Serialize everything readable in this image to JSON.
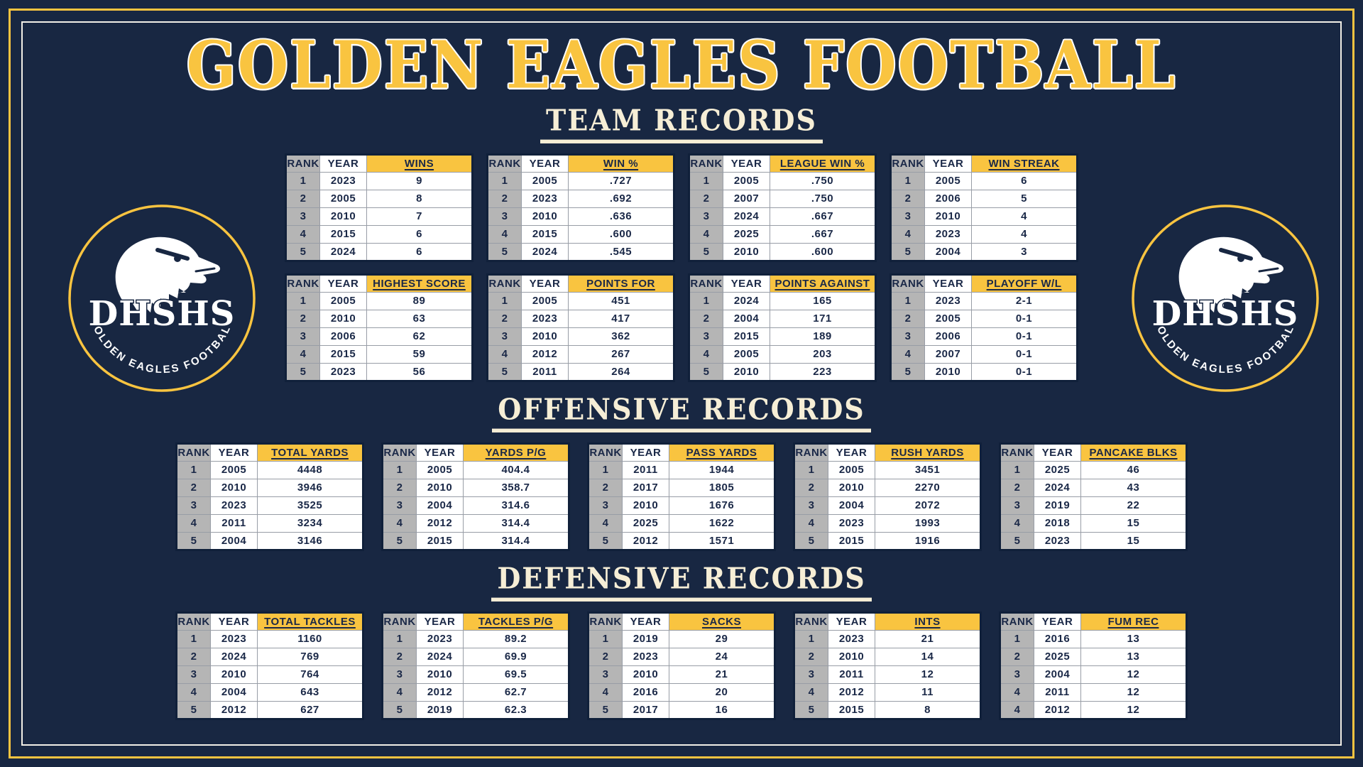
{
  "title": "GOLDEN EAGLES FOOTBALL",
  "labels": {
    "rank": "RANK",
    "year": "YEAR"
  },
  "logo": {
    "monogram": "DHSHS",
    "arc_text": "GOLDEN EAGLES FOOTBALL"
  },
  "colors": {
    "background": "#182742",
    "gold": "#f9c440",
    "cream": "#f6eed6",
    "rank_gray": "#b5b5b5",
    "table_text": "#1a2847",
    "white": "#ffffff"
  },
  "sections": [
    {
      "heading": "TEAM RECORDS",
      "layout": "team",
      "tables": [
        {
          "stat": "WINS",
          "rows": [
            [
              "1",
              "2023",
              "9"
            ],
            [
              "2",
              "2005",
              "8"
            ],
            [
              "3",
              "2010",
              "7"
            ],
            [
              "4",
              "2015",
              "6"
            ],
            [
              "5",
              "2024",
              "6"
            ]
          ]
        },
        {
          "stat": "WIN %",
          "rows": [
            [
              "1",
              "2005",
              ".727"
            ],
            [
              "2",
              "2023",
              ".692"
            ],
            [
              "3",
              "2010",
              ".636"
            ],
            [
              "4",
              "2015",
              ".600"
            ],
            [
              "5",
              "2024",
              ".545"
            ]
          ]
        },
        {
          "stat": "LEAGUE WIN %",
          "rows": [
            [
              "1",
              "2005",
              ".750"
            ],
            [
              "2",
              "2007",
              ".750"
            ],
            [
              "3",
              "2024",
              ".667"
            ],
            [
              "4",
              "2025",
              ".667"
            ],
            [
              "5",
              "2010",
              ".600"
            ]
          ]
        },
        {
          "stat": "WIN STREAK",
          "rows": [
            [
              "1",
              "2005",
              "6"
            ],
            [
              "2",
              "2006",
              "5"
            ],
            [
              "3",
              "2010",
              "4"
            ],
            [
              "4",
              "2023",
              "4"
            ],
            [
              "5",
              "2004",
              "3"
            ]
          ]
        },
        {
          "stat": "HIGHEST SCORE",
          "rows": [
            [
              "1",
              "2005",
              "89"
            ],
            [
              "2",
              "2010",
              "63"
            ],
            [
              "3",
              "2006",
              "62"
            ],
            [
              "4",
              "2015",
              "59"
            ],
            [
              "5",
              "2023",
              "56"
            ]
          ]
        },
        {
          "stat": "POINTS FOR",
          "rows": [
            [
              "1",
              "2005",
              "451"
            ],
            [
              "2",
              "2023",
              "417"
            ],
            [
              "3",
              "2010",
              "362"
            ],
            [
              "4",
              "2012",
              "267"
            ],
            [
              "5",
              "2011",
              "264"
            ]
          ]
        },
        {
          "stat": "POINTS AGAINST",
          "rows": [
            [
              "1",
              "2024",
              "165"
            ],
            [
              "2",
              "2004",
              "171"
            ],
            [
              "3",
              "2015",
              "189"
            ],
            [
              "4",
              "2005",
              "203"
            ],
            [
              "5",
              "2010",
              "223"
            ]
          ]
        },
        {
          "stat": "PLAYOFF W/L",
          "rows": [
            [
              "1",
              "2023",
              "2-1"
            ],
            [
              "2",
              "2005",
              "0-1"
            ],
            [
              "3",
              "2006",
              "0-1"
            ],
            [
              "4",
              "2007",
              "0-1"
            ],
            [
              "5",
              "2010",
              "0-1"
            ]
          ]
        }
      ]
    },
    {
      "heading": "OFFENSIVE RECORDS",
      "layout": "wide",
      "tables": [
        {
          "stat": "TOTAL YARDS",
          "rows": [
            [
              "1",
              "2005",
              "4448"
            ],
            [
              "2",
              "2010",
              "3946"
            ],
            [
              "3",
              "2023",
              "3525"
            ],
            [
              "4",
              "2011",
              "3234"
            ],
            [
              "5",
              "2004",
              "3146"
            ]
          ]
        },
        {
          "stat": "YARDS P/G",
          "rows": [
            [
              "1",
              "2005",
              "404.4"
            ],
            [
              "2",
              "2010",
              "358.7"
            ],
            [
              "3",
              "2004",
              "314.6"
            ],
            [
              "4",
              "2012",
              "314.4"
            ],
            [
              "5",
              "2015",
              "314.4"
            ]
          ]
        },
        {
          "stat": "PASS YARDS",
          "rows": [
            [
              "1",
              "2011",
              "1944"
            ],
            [
              "2",
              "2017",
              "1805"
            ],
            [
              "3",
              "2010",
              "1676"
            ],
            [
              "4",
              "2025",
              "1622"
            ],
            [
              "5",
              "2012",
              "1571"
            ]
          ]
        },
        {
          "stat": "RUSH YARDS",
          "rows": [
            [
              "1",
              "2005",
              "3451"
            ],
            [
              "2",
              "2010",
              "2270"
            ],
            [
              "3",
              "2004",
              "2072"
            ],
            [
              "4",
              "2023",
              "1993"
            ],
            [
              "5",
              "2015",
              "1916"
            ]
          ]
        },
        {
          "stat": "PANCAKE BLKS",
          "rows": [
            [
              "1",
              "2025",
              "46"
            ],
            [
              "2",
              "2024",
              "43"
            ],
            [
              "3",
              "2019",
              "22"
            ],
            [
              "4",
              "2018",
              "15"
            ],
            [
              "5",
              "2023",
              "15"
            ]
          ]
        }
      ]
    },
    {
      "heading": "DEFENSIVE RECORDS",
      "layout": "wide",
      "tables": [
        {
          "stat": "TOTAL TACKLES",
          "rows": [
            [
              "1",
              "2023",
              "1160"
            ],
            [
              "2",
              "2024",
              "769"
            ],
            [
              "3",
              "2010",
              "764"
            ],
            [
              "4",
              "2004",
              "643"
            ],
            [
              "5",
              "2012",
              "627"
            ]
          ]
        },
        {
          "stat": "TACKLES P/G",
          "rows": [
            [
              "1",
              "2023",
              "89.2"
            ],
            [
              "2",
              "2024",
              "69.9"
            ],
            [
              "3",
              "2010",
              "69.5"
            ],
            [
              "4",
              "2012",
              "62.7"
            ],
            [
              "5",
              "2019",
              "62.3"
            ]
          ]
        },
        {
          "stat": "SACKS",
          "rows": [
            [
              "1",
              "2019",
              "29"
            ],
            [
              "2",
              "2023",
              "24"
            ],
            [
              "3",
              "2010",
              "21"
            ],
            [
              "4",
              "2016",
              "20"
            ],
            [
              "5",
              "2017",
              "16"
            ]
          ]
        },
        {
          "stat": "INTS",
          "rows": [
            [
              "1",
              "2023",
              "21"
            ],
            [
              "2",
              "2010",
              "14"
            ],
            [
              "3",
              "2011",
              "12"
            ],
            [
              "4",
              "2012",
              "11"
            ],
            [
              "5",
              "2015",
              "8"
            ]
          ]
        },
        {
          "stat": "FUM REC",
          "rows": [
            [
              "1",
              "2016",
              "13"
            ],
            [
              "2",
              "2025",
              "13"
            ],
            [
              "3",
              "2004",
              "12"
            ],
            [
              "4",
              "2011",
              "12"
            ],
            [
              "4",
              "2012",
              "12"
            ]
          ]
        }
      ]
    }
  ]
}
